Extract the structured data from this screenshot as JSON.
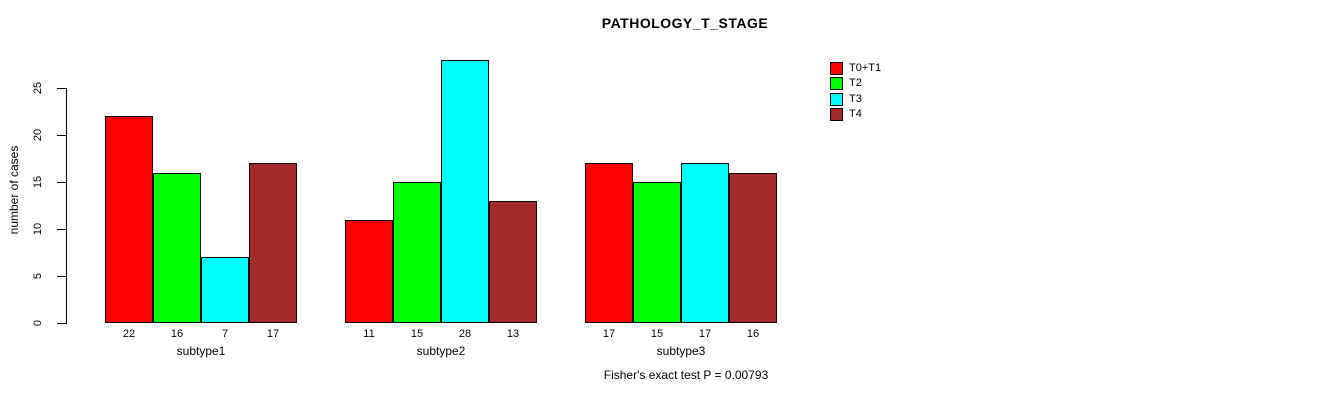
{
  "chart_data": {
    "type": "bar",
    "title": "PATHOLOGY_T_STAGE",
    "ylabel": "number of cases",
    "xlabel": "",
    "categories": [
      "subtype1",
      "subtype2",
      "subtype3"
    ],
    "series": [
      {
        "name": "T0+T1",
        "color": "#FF0000",
        "values": [
          22,
          11,
          17
        ]
      },
      {
        "name": "T2",
        "color": "#00FF00",
        "values": [
          16,
          15,
          15
        ]
      },
      {
        "name": "T3",
        "color": "#00FFFF",
        "values": [
          7,
          28,
          17
        ]
      },
      {
        "name": "T4",
        "color": "#A52A2A",
        "values": [
          17,
          13,
          16
        ]
      }
    ],
    "yticks": [
      0,
      5,
      10,
      15,
      20,
      25
    ],
    "ylim": [
      0,
      28
    ],
    "grid": false,
    "legend_position": "top-right",
    "bar_value_labels_shown": true,
    "footnote": "Fisher's exact test P = 0.00793"
  }
}
